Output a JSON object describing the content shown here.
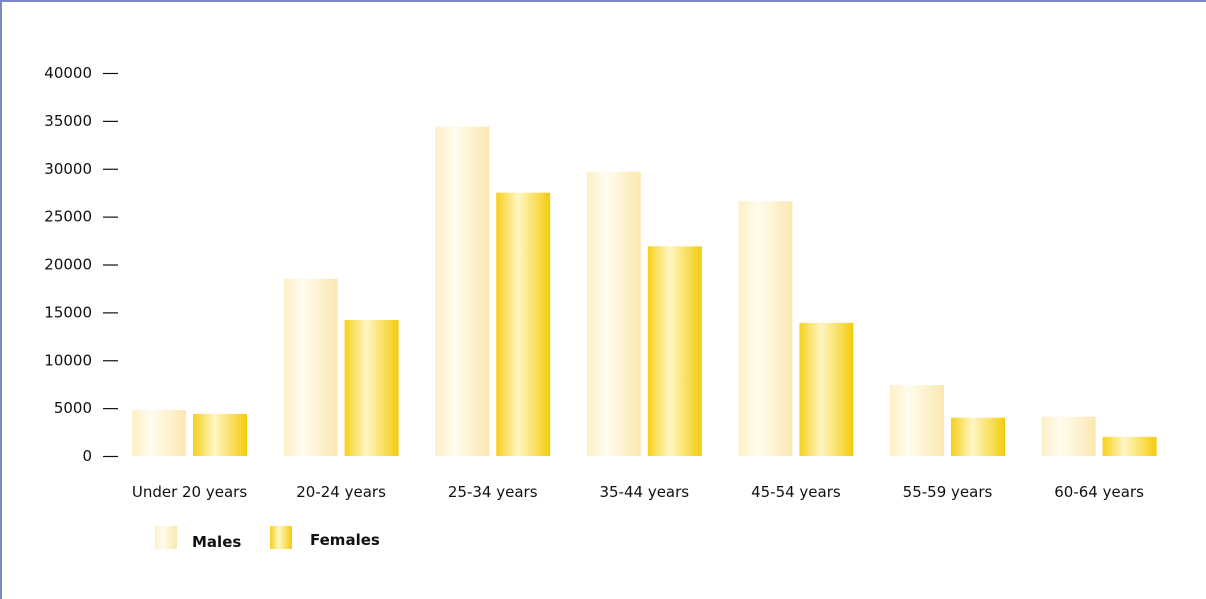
{
  "chart_data": {
    "type": "bar",
    "title": "",
    "xlabel": "",
    "ylabel": "",
    "categories": [
      "Under 20 years",
      "20-24 years",
      "25-34 years",
      "35-44 years",
      "45-54 years",
      "55-59 years",
      "60-64 years"
    ],
    "series": [
      {
        "name": "Males",
        "values": [
          4800,
          18500,
          34400,
          29700,
          26600,
          7400,
          4100
        ]
      },
      {
        "name": "Females",
        "values": [
          4400,
          14200,
          27500,
          21900,
          13900,
          4000,
          2000
        ]
      }
    ],
    "ylim": [
      0,
      40000
    ],
    "yticks": [
      "0",
      "5000",
      "10000",
      "15000",
      "20000",
      "25000",
      "30000",
      "35000",
      "40000"
    ],
    "grid": false,
    "legend_position": "bottom-left"
  },
  "colors": {
    "frame": "#7d87c0",
    "males_light": "#fffaea",
    "males_dark": "#fbe6a8",
    "females_light": "#fff8c8",
    "females_dark": "#f5cf10",
    "tick": "#111111"
  }
}
